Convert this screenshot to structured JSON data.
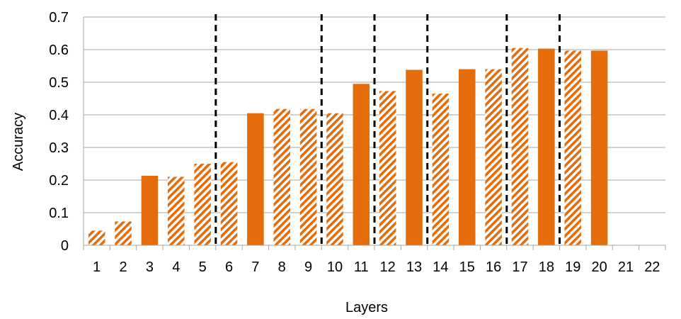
{
  "chart_data": {
    "type": "bar",
    "title": "",
    "xlabel": "Layers",
    "ylabel": "Accuracy",
    "ylim": [
      0,
      0.7
    ],
    "yticks": [
      "0",
      "0.1",
      "0.2",
      "0.3",
      "0.4",
      "0.5",
      "0.6",
      "0.7"
    ],
    "grid": true,
    "legend": "none",
    "categories": [
      "1",
      "2",
      "3",
      "4",
      "5",
      "6",
      "7",
      "8",
      "9",
      "10",
      "11",
      "12",
      "13",
      "14",
      "15",
      "16",
      "17",
      "18",
      "19",
      "20",
      "21",
      "22"
    ],
    "values": [
      0.045,
      0.073,
      0.213,
      0.21,
      0.25,
      0.255,
      0.405,
      0.418,
      0.418,
      0.405,
      0.495,
      0.473,
      0.538,
      0.465,
      0.54,
      0.54,
      0.605,
      0.603,
      0.597,
      0.597,
      null,
      null
    ],
    "hatched": [
      true,
      true,
      false,
      true,
      true,
      true,
      false,
      true,
      true,
      true,
      false,
      true,
      false,
      true,
      false,
      true,
      true,
      false,
      true,
      false,
      false,
      false
    ],
    "dashed_separators_after": [
      "5",
      "9",
      "11",
      "13",
      "16",
      "18"
    ],
    "colors": {
      "bar": "#E46C0A",
      "grid": "#A6A6A6",
      "separator": "#000000"
    }
  }
}
